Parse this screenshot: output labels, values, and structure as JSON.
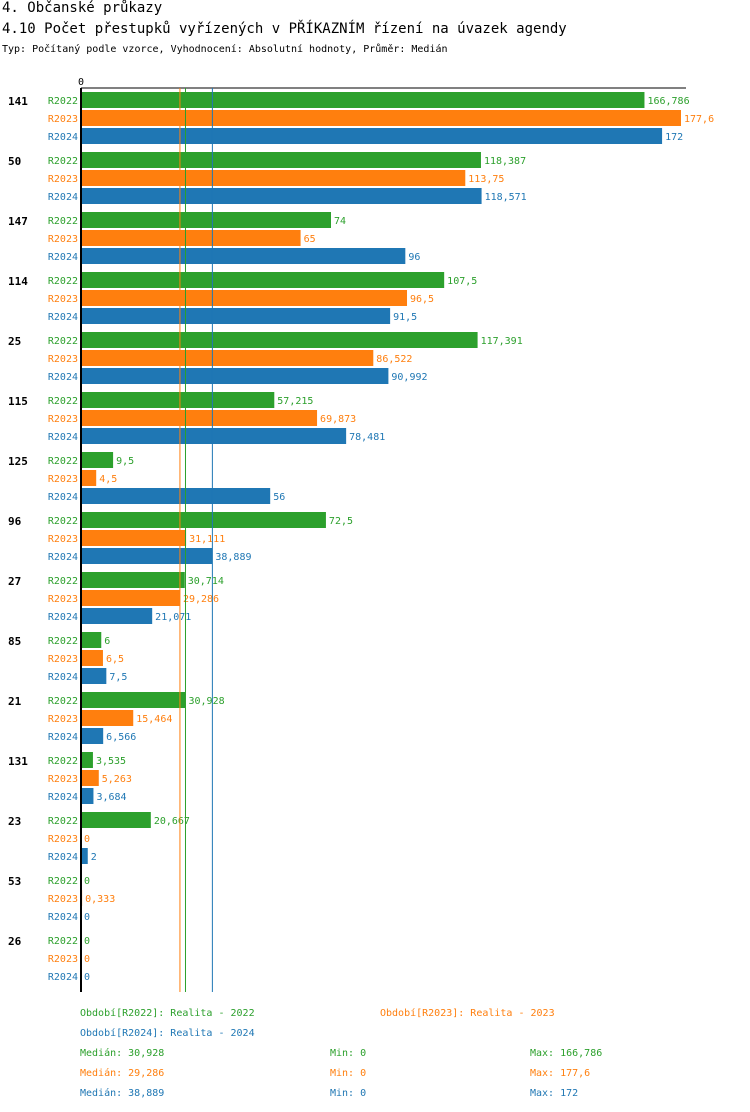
{
  "header": {
    "section": "4. Občanské průkazy",
    "title": "4.10 Počet přestupků vyřízených v PŘÍKAZNÍM řízení na úvazek agendy",
    "subtitle": "Typ: Počítaný podle vzorce, Vyhodnocení: Absolutní hodnoty, Průměr: Medián"
  },
  "chart_data": {
    "type": "bar",
    "orientation": "horizontal",
    "axis_zero_label": "0",
    "xlim": [
      0,
      177.6
    ],
    "categories": [
      "141",
      "50",
      "147",
      "114",
      "25",
      "115",
      "125",
      "96",
      "27",
      "85",
      "21",
      "131",
      "23",
      "53",
      "26"
    ],
    "series": [
      {
        "name": "R2022",
        "color": "#2ca02c",
        "values": [
          166.786,
          118.387,
          74,
          107.5,
          117.391,
          57.215,
          9.5,
          72.5,
          30.714,
          6,
          30.928,
          3.535,
          20.667,
          0,
          0
        ],
        "labels": [
          "166,786",
          "118,387",
          "74",
          "107,5",
          "117,391",
          "57,215",
          "9,5",
          "72,5",
          "30,714",
          "6",
          "30,928",
          "3,535",
          "20,667",
          "0",
          "0"
        ]
      },
      {
        "name": "R2023",
        "color": "#ff7f0e",
        "values": [
          177.6,
          113.75,
          65,
          96.5,
          86.522,
          69.873,
          4.5,
          31.111,
          29.286,
          6.5,
          15.464,
          5.263,
          0,
          0.333,
          0
        ],
        "labels": [
          "177,6",
          "113,75",
          "65",
          "96,5",
          "86,522",
          "69,873",
          "4,5",
          "31,111",
          "29,286",
          "6,5",
          "15,464",
          "5,263",
          "0",
          "0,333",
          "0"
        ]
      },
      {
        "name": "R2024",
        "color": "#1f77b4",
        "values": [
          172,
          118.571,
          96,
          91.5,
          90.992,
          78.481,
          56,
          38.889,
          21.071,
          7.5,
          6.566,
          3.684,
          2,
          0,
          0
        ],
        "labels": [
          "172",
          "118,571",
          "96",
          "91,5",
          "90,992",
          "78,481",
          "56",
          "38,889",
          "21,071",
          "7,5",
          "6,566",
          "3,684",
          "2",
          "0",
          "0"
        ]
      }
    ],
    "median_lines": [
      30.928,
      29.286,
      38.889
    ]
  },
  "legend": {
    "periods": [
      {
        "text": "Období[R2022]: Realita - 2022",
        "color": "#2ca02c"
      },
      {
        "text": "Období[R2023]: Realita - 2023",
        "color": "#ff7f0e"
      },
      {
        "text": "Období[R2024]: Realita - 2024",
        "color": "#1f77b4"
      }
    ],
    "stats": [
      {
        "median": "Medián: 30,928",
        "min": "Min: 0",
        "max": "Max: 166,786",
        "color": "#2ca02c"
      },
      {
        "median": "Medián: 29,286",
        "min": "Min: 0",
        "max": "Max: 177,6",
        "color": "#ff7f0e"
      },
      {
        "median": "Medián: 38,889",
        "min": "Min: 0",
        "max": "Max: 172",
        "color": "#1f77b4"
      }
    ]
  }
}
